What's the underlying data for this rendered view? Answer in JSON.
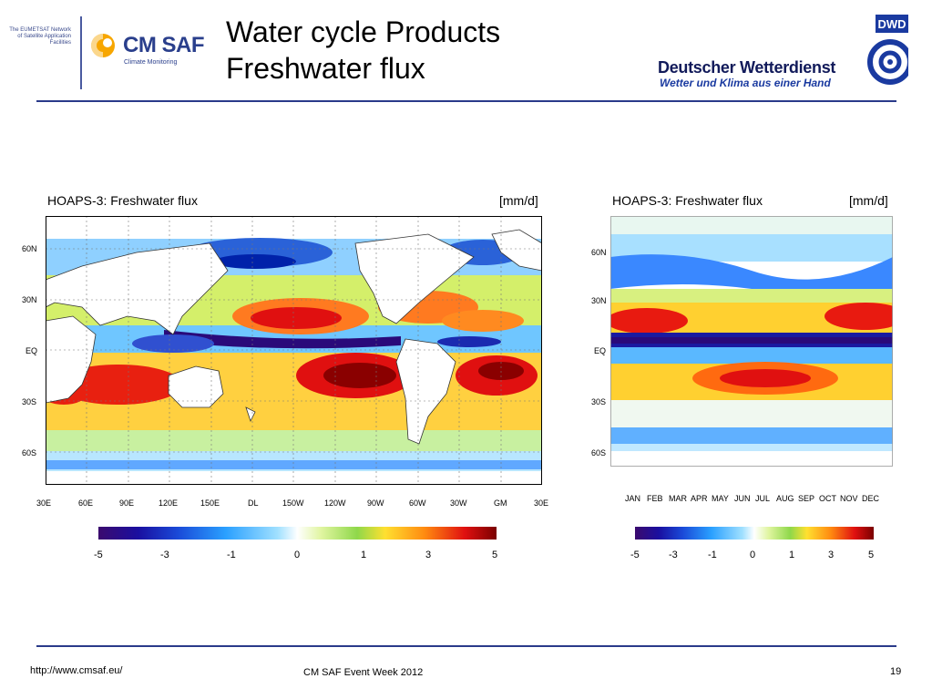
{
  "header": {
    "eumetsat_text": "The EUMETSAT Network of Satellite Application Facilities",
    "cmsaf_name": "CM SAF",
    "cmsaf_sub": "Climate Monitoring",
    "title_line1": "Water cycle Products",
    "title_line2": "Freshwater flux",
    "dwd_badge": "DWD",
    "dwd_name": "Deutscher Wetterdienst",
    "dwd_slogan": "Wetter und Klima aus einer Hand"
  },
  "colors": {
    "rule": "#2a3a8a",
    "brand_blue": "#2a3f8c",
    "brand_orange": "#f7a600"
  },
  "chart_data": [
    {
      "type": "heatmap",
      "title": "HOAPS-3: Freshwater flux",
      "unit": "[mm/d]",
      "x_ticks": [
        "30E",
        "60E",
        "90E",
        "120E",
        "150E",
        "DL",
        "150W",
        "120W",
        "90W",
        "60W",
        "30W",
        "GM",
        "30E"
      ],
      "y_ticks": [
        "60N",
        "30N",
        "EQ",
        "30S",
        "60S"
      ],
      "colorbar": {
        "ticks": [
          "-5",
          "-3",
          "-1",
          "0",
          "1",
          "3",
          "5"
        ],
        "range": [
          -5,
          5
        ]
      }
    },
    {
      "type": "heatmap",
      "title": "HOAPS-3: Freshwater flux",
      "unit": "[mm/d]",
      "x_ticks": [
        "JAN",
        "FEB",
        "MAR",
        "APR",
        "MAY",
        "JUN",
        "JUL",
        "AUG",
        "SEP",
        "OCT",
        "NOV",
        "DEC"
      ],
      "y_ticks": [
        "60N",
        "30N",
        "EQ",
        "30S",
        "60S"
      ],
      "colorbar": {
        "ticks": [
          "-5",
          "-3",
          "-1",
          "0",
          "1",
          "3",
          "5"
        ],
        "range": [
          -5,
          5
        ]
      }
    }
  ],
  "footer": {
    "url": "http://www.cmsaf.eu/",
    "event": "CM SAF Event Week 2012",
    "page": "19"
  }
}
